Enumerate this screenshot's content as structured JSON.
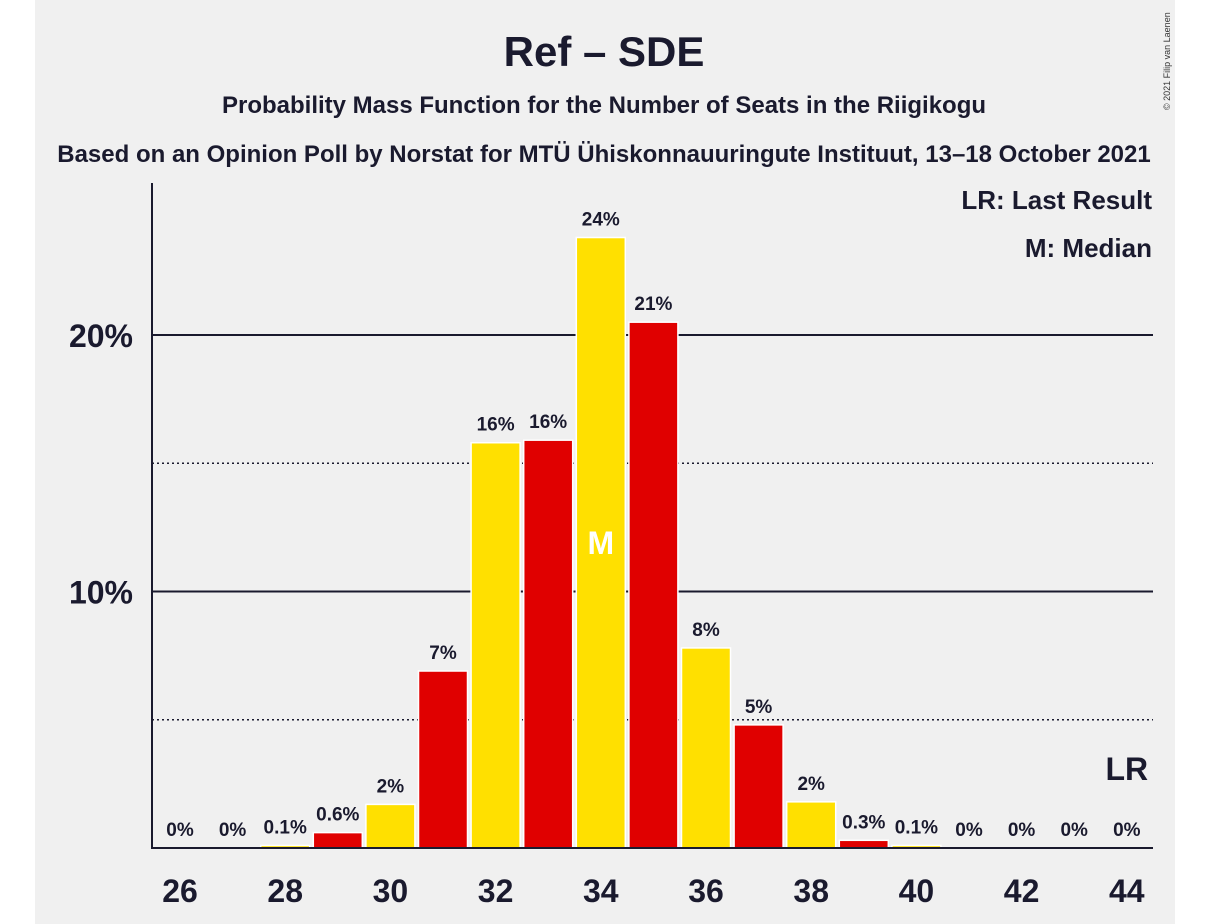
{
  "chart_data": {
    "type": "bar",
    "title": "Ref – SDE",
    "subtitle": "Probability Mass Function for the Number of Seats in the Riigikogu",
    "subtitle2": "Based on an Opinion Poll by Norstat for MTÜ Ühiskonnauuringute Instituut, 13–18 October 2021",
    "copyright": "© 2021 Filip van Laenen",
    "legend": {
      "lr": "LR: Last Result",
      "m": "M: Median"
    },
    "ylim": [
      0,
      26
    ],
    "yticks": [
      {
        "value": 10,
        "label": "10%"
      },
      {
        "value": 20,
        "label": "20%"
      }
    ],
    "minor_gridlines": [
      5,
      15
    ],
    "x": [
      26,
      27,
      28,
      29,
      30,
      31,
      32,
      33,
      34,
      35,
      36,
      37,
      38,
      39,
      40,
      41,
      42,
      43,
      44
    ],
    "xtick_labels": [
      "26",
      "28",
      "30",
      "32",
      "34",
      "36",
      "38",
      "40",
      "42",
      "44"
    ],
    "values": [
      0,
      0,
      0.1,
      0.6,
      1.7,
      6.9,
      15.8,
      15.9,
      23.8,
      20.5,
      7.8,
      4.8,
      1.8,
      0.3,
      0.1,
      0,
      0,
      0,
      0
    ],
    "labels": [
      "0%",
      "0%",
      "0.1%",
      "0.6%",
      "2%",
      "7%",
      "16%",
      "16%",
      "24%",
      "21%",
      "8%",
      "5%",
      "2%",
      "0.3%",
      "0.1%",
      "0%",
      "0%",
      "0%",
      "0%"
    ],
    "median_seat": 34,
    "median_label": "M",
    "last_result_seat": 44,
    "last_result_label": "LR",
    "colors": {
      "yellow": "#ffe000",
      "red": "#e00000",
      "axis": "#1a1a2e"
    }
  }
}
